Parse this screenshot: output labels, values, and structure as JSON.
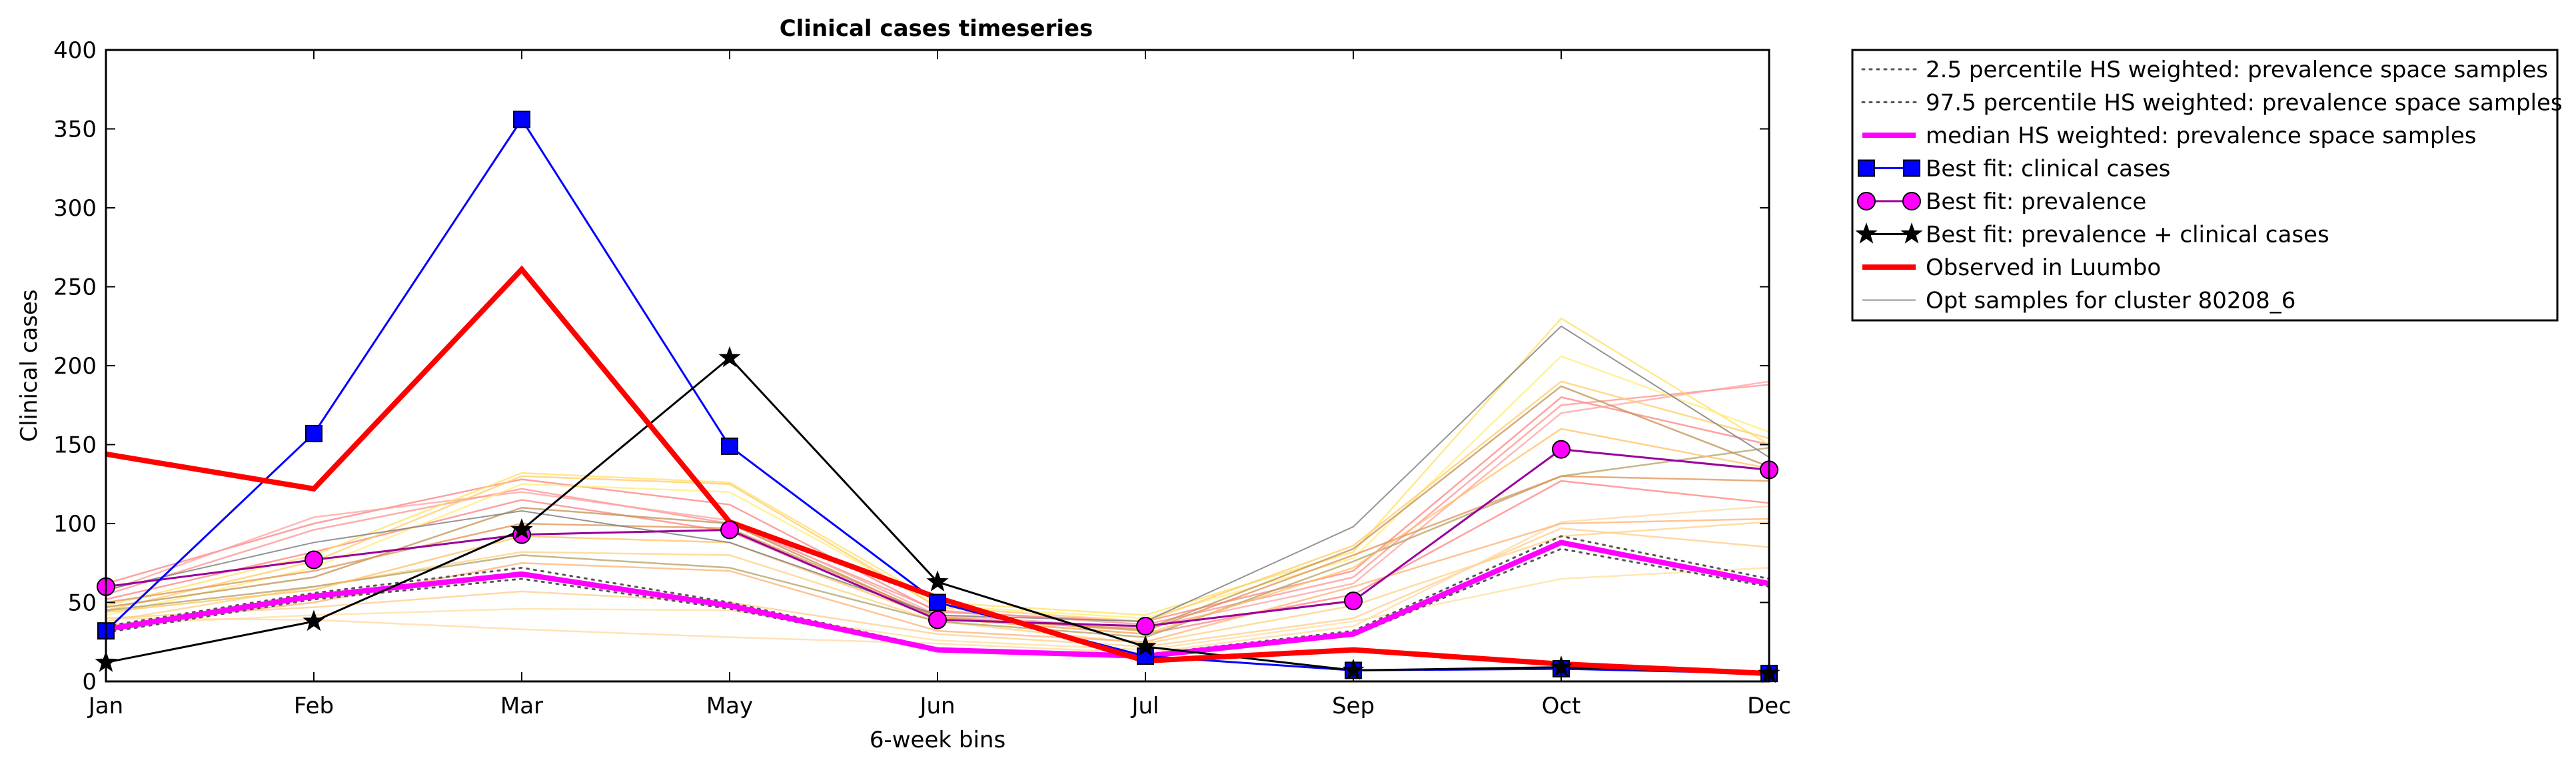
{
  "chart_data": {
    "type": "line",
    "title": "Clinical cases timeseries",
    "xlabel": "6-week bins",
    "ylabel": "Clinical cases",
    "categories": [
      "Jan",
      "Feb",
      "Mar",
      "May",
      "Jun",
      "Jul",
      "Sep",
      "Oct",
      "Dec"
    ],
    "ylim": [
      0,
      400
    ],
    "yticks": [
      0,
      50,
      100,
      150,
      200,
      250,
      300,
      350,
      400
    ],
    "grid": false,
    "legend_position": "outside-right",
    "series": [
      {
        "name": "2.5 percentile HS weighted: prevalence space samples",
        "style": "dotted",
        "color": "#555555",
        "values": [
          31,
          52,
          65,
          46,
          20,
          15,
          29,
          84,
          60
        ]
      },
      {
        "name": "97.5 percentile HS weighted: prevalence space samples",
        "style": "dotted",
        "color": "#555555",
        "values": [
          35,
          56,
          72,
          50,
          21,
          17,
          32,
          92,
          65
        ]
      },
      {
        "name": "median HS weighted: prevalence space samples",
        "style": "thick",
        "color": "#ff00ff",
        "values": [
          33,
          54,
          68,
          48,
          20,
          16,
          30,
          88,
          62
        ]
      },
      {
        "name": "Best fit: clinical cases",
        "style": "square",
        "color": "#0000ff",
        "values": [
          32,
          157,
          356,
          149,
          50,
          16,
          7,
          8,
          5
        ]
      },
      {
        "name": "Best fit: prevalence",
        "style": "circle",
        "color": "#ff00ff",
        "values": [
          60,
          77,
          93,
          96,
          39,
          35,
          51,
          147,
          134
        ]
      },
      {
        "name": "Best fit: prevalence + clinical cases",
        "style": "star",
        "color": "#000000",
        "values": [
          12,
          38,
          96,
          205,
          63,
          22,
          7,
          9,
          5
        ]
      },
      {
        "name": "Observed in Luumbo",
        "style": "thick",
        "color": "#ff0000",
        "values": [
          144,
          122,
          261,
          101,
          53,
          13,
          20,
          11,
          5
        ]
      },
      {
        "name": "Opt samples for cluster 80208_6",
        "style": "thin",
        "color": "#808080",
        "values": [
          58,
          88,
          108,
          88,
          42,
          38,
          98,
          225,
          142
        ]
      }
    ],
    "samples": [
      {
        "color": "#ff8080",
        "values": [
          62,
          100,
          128,
          112,
          44,
          38,
          70,
          180,
          150
        ]
      },
      {
        "color": "#ff9090",
        "values": [
          55,
          96,
          122,
          100,
          45,
          36,
          66,
          175,
          188
        ]
      },
      {
        "color": "#ff8080",
        "values": [
          52,
          82,
          115,
          95,
          40,
          30,
          55,
          127,
          113
        ]
      },
      {
        "color": "#ffa0a0",
        "values": [
          57,
          104,
          120,
          102,
          42,
          34,
          62,
          170,
          190
        ]
      },
      {
        "color": "#ffe066",
        "values": [
          48,
          80,
          132,
          126,
          50,
          42,
          82,
          230,
          150
        ]
      },
      {
        "color": "#ffee77",
        "values": [
          42,
          72,
          125,
          120,
          48,
          40,
          78,
          206,
          158
        ]
      },
      {
        "color": "#ffcc66",
        "values": [
          45,
          76,
          130,
          125,
          47,
          38,
          86,
          190,
          154
        ]
      },
      {
        "color": "#ffd080",
        "values": [
          38,
          60,
          82,
          80,
          38,
          24,
          48,
          92,
          101
        ]
      },
      {
        "color": "#ffcc88",
        "values": [
          40,
          47,
          57,
          50,
          30,
          22,
          40,
          97,
          85
        ]
      },
      {
        "color": "#ffdd99",
        "values": [
          36,
          42,
          46,
          45,
          26,
          20,
          38,
          65,
          72
        ]
      },
      {
        "color": "#ffd8a0",
        "values": [
          40,
          39,
          33,
          28,
          24,
          18,
          35,
          101,
          111
        ]
      },
      {
        "color": "#b0a060",
        "values": [
          45,
          60,
          80,
          72,
          38,
          28,
          76,
          130,
          148
        ]
      },
      {
        "color": "#c09050",
        "values": [
          47,
          66,
          110,
          100,
          40,
          33,
          84,
          187,
          136
        ]
      },
      {
        "color": "#e09050",
        "values": [
          50,
          70,
          100,
          97,
          41,
          32,
          80,
          130,
          127
        ]
      },
      {
        "color": "#ffc060",
        "values": [
          44,
          58,
          92,
          88,
          40,
          30,
          72,
          160,
          135
        ]
      },
      {
        "color": "#ffb070",
        "values": [
          35,
          50,
          75,
          70,
          32,
          25,
          60,
          100,
          103
        ]
      }
    ]
  }
}
